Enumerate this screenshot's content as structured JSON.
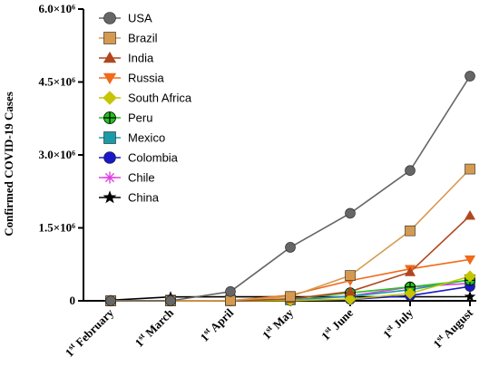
{
  "chart_data": {
    "type": "line",
    "title": "",
    "xlabel": "",
    "ylabel": "Confirmed COVID-19 Cases",
    "ylim": [
      0,
      6000000
    ],
    "yticks": [
      {
        "value": 0,
        "label": "0"
      },
      {
        "value": 1500000,
        "label": "1.5×10⁶"
      },
      {
        "value": 3000000,
        "label": "3.0×10⁶"
      },
      {
        "value": 4500000,
        "label": "4.5×10⁶"
      },
      {
        "value": 6000000,
        "label": "6.0×10⁶"
      }
    ],
    "categories": [
      {
        "ord": "1",
        "sup": "st",
        "month": "February"
      },
      {
        "ord": "1",
        "sup": "st",
        "month": "March"
      },
      {
        "ord": "1",
        "sup": "st",
        "month": "April"
      },
      {
        "ord": "1",
        "sup": "st",
        "month": "May"
      },
      {
        "ord": "1",
        "sup": "st",
        "month": "June"
      },
      {
        "ord": "1",
        "sup": "st",
        "month": "July"
      },
      {
        "ord": "1",
        "sup": "st",
        "month": "August"
      }
    ],
    "legend_position": "top-left",
    "grid": false,
    "series": [
      {
        "name": "USA",
        "color": "#666666",
        "marker": "circle",
        "values": [
          8,
          75,
          190000,
          1100000,
          1800000,
          2680000,
          4620000
        ]
      },
      {
        "name": "Brazil",
        "color": "#D59A50",
        "marker": "square",
        "values": [
          0,
          2,
          6800,
          87000,
          520000,
          1440000,
          2710000
        ]
      },
      {
        "name": "India",
        "color": "#B1461F",
        "marker": "triangle-up",
        "values": [
          3,
          3,
          1998,
          37000,
          190000,
          590000,
          1750000
        ]
      },
      {
        "name": "Russia",
        "color": "#F06A1A",
        "marker": "triangle-down",
        "values": [
          2,
          3,
          2777,
          115000,
          415000,
          655000,
          850000
        ]
      },
      {
        "name": "South Africa",
        "color": "#C7C400",
        "marker": "diamond",
        "values": [
          0,
          0,
          1380,
          5950,
          32700,
          151000,
          503000
        ]
      },
      {
        "name": "Peru",
        "color": "#23C41E",
        "marker": "circle-cross",
        "values": [
          0,
          0,
          1065,
          40500,
          164000,
          285000,
          422000
        ]
      },
      {
        "name": "Mexico",
        "color": "#1B9BA8",
        "marker": "square",
        "values": [
          0,
          4,
          1215,
          20000,
          90000,
          227000,
          434000
        ]
      },
      {
        "name": "Colombia",
        "color": "#1818C8",
        "marker": "circle",
        "values": [
          0,
          0,
          1065,
          7000,
          29400,
          106000,
          295000
        ]
      },
      {
        "name": "Chile",
        "color": "#E040E0",
        "marker": "asterisk",
        "values": [
          0,
          0,
          3030,
          16000,
          99700,
          282000,
          359000
        ]
      },
      {
        "name": "China",
        "color": "#000000",
        "marker": "star",
        "values": [
          11800,
          80000,
          82000,
          83000,
          83000,
          83500,
          84000
        ]
      }
    ]
  }
}
